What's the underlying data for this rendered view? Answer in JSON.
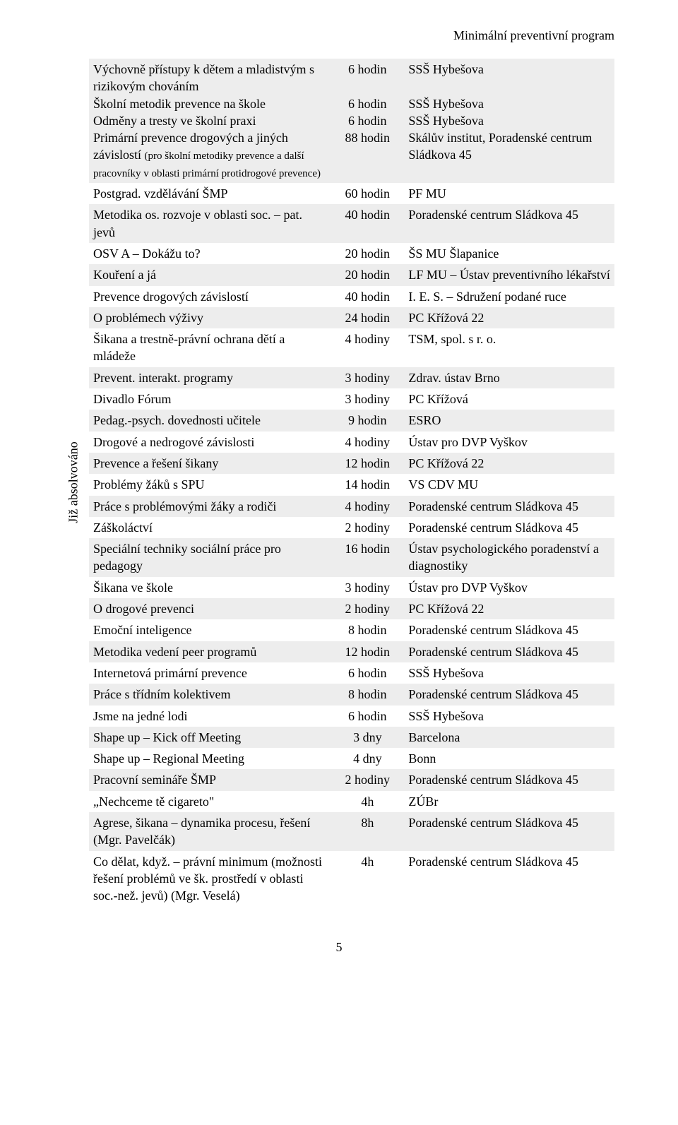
{
  "header": {
    "title": "Minimální preventivní program"
  },
  "sideLabel": "Již absolvováno",
  "pageNumber": "5",
  "columns": {
    "name_w": "46%",
    "hours_w": "14%",
    "org_w": "40%"
  },
  "rows": [
    {
      "name_html": "Výchovně přístupy k dětem a mladistvým s rizikovým chováním<br>Školní metodik prevence na škole<br>Odměny a tresty ve školní praxi<br>Primární prevence drogových a jiných závislostí <span class='small'>(pro školní metodiky prevence a další pracovníky v oblasti primární protidrogové prevence)</span>",
      "hours_html": "6 hodin<br>&nbsp;<br>6 hodin<br>6 hodin<br>88 hodin",
      "org_html": "SSŠ Hybešova<br>&nbsp;<br>SSŠ Hybešova<br>SSŠ Hybešova<br>Skálův institut, Poradenské centrum Sládkova 45"
    },
    {
      "name": "Postgrad. vzdělávání ŠMP",
      "hours": "60 hodin",
      "org": "PF MU"
    },
    {
      "name": "Metodika os. rozvoje v oblasti soc. – pat. jevů",
      "hours": "40 hodin",
      "org": "Poradenské centrum Sládkova 45"
    },
    {
      "name": "OSV A – Dokážu to?",
      "hours": "20 hodin",
      "org": "ŠS MU Šlapanice"
    },
    {
      "name": "Kouření a já",
      "hours": "20 hodin",
      "org": "LF MU – Ústav preventivního lékařství"
    },
    {
      "name": "Prevence drogových závislostí",
      "hours": "40 hodin",
      "org": "I. E. S. – Sdružení podané ruce"
    },
    {
      "name": "O problémech výživy",
      "hours": "24 hodin",
      "org": "PC Křížová 22"
    },
    {
      "name": "Šikana a trestně-právní ochrana dětí a mládeže",
      "hours": "4 hodiny",
      "org": "TSM, spol. s r. o."
    },
    {
      "name": "Prevent. interakt. programy",
      "hours": "3 hodiny",
      "org": "Zdrav. ústav Brno"
    },
    {
      "name": "Divadlo Fórum",
      "hours": "3 hodiny",
      "org": "PC Křížová"
    },
    {
      "name": "Pedag.-psych. dovednosti učitele",
      "hours": "9 hodin",
      "org": "ESRO"
    },
    {
      "name": "Drogové a nedrogové závislosti",
      "hours": "4 hodiny",
      "org": "Ústav pro DVP Vyškov"
    },
    {
      "name": "Prevence a řešení šikany",
      "hours": "12 hodin",
      "org": "PC Křížová 22"
    },
    {
      "name": "Problémy žáků s SPU",
      "hours": "14 hodin",
      "org": "VS CDV MU"
    },
    {
      "name": "Práce s problémovými žáky a rodiči",
      "hours": "4 hodiny",
      "org": "Poradenské centrum Sládkova 45"
    },
    {
      "name": "Záškoláctví",
      "hours": "2 hodiny",
      "org": "Poradenské centrum Sládkova 45"
    },
    {
      "name": "Speciální techniky sociální práce pro pedagogy",
      "hours": "16 hodin",
      "org": "Ústav psychologického poradenství a diagnostiky"
    },
    {
      "name": "Šikana ve škole",
      "hours": "3 hodiny",
      "org": "Ústav pro DVP Vyškov"
    },
    {
      "name": "O drogové prevenci",
      "hours": "2 hodiny",
      "org": "PC Křížová 22"
    },
    {
      "name": "Emoční inteligence",
      "hours": "8 hodin",
      "org": "Poradenské centrum Sládkova 45"
    },
    {
      "name": "Metodika vedení peer programů",
      "hours": "12 hodin",
      "org": "Poradenské centrum Sládkova 45"
    },
    {
      "name": "Internetová primární prevence",
      "hours": "6 hodin",
      "org": "SSŠ Hybešova"
    },
    {
      "name": "Práce s třídním kolektivem",
      "hours": "8 hodin",
      "org": "Poradenské centrum Sládkova 45"
    },
    {
      "name": "Jsme na jedné lodi",
      "hours": "6 hodin",
      "org": "SSŠ Hybešova"
    },
    {
      "name": "Shape up – Kick off Meeting",
      "hours": "3 dny",
      "org": "Barcelona"
    },
    {
      "name": "Shape up – Regional Meeting",
      "hours": "4 dny",
      "org": "Bonn"
    },
    {
      "name": "Pracovní semináře ŠMP",
      "hours": "2 hodiny",
      "org": "Poradenské centrum Sládkova 45"
    },
    {
      "name": "„Nechceme tě cigareto\"",
      "hours": "4h",
      "org": "ZÚBr"
    },
    {
      "name": "Agrese, šikana – dynamika procesu, řešení (Mgr. Pavelčák)",
      "hours": "8h",
      "org": "Poradenské centrum Sládkova 45"
    },
    {
      "name": "Co dělat, když. – právní minimum (možnosti řešení problémů ve šk. prostředí v oblasti soc.-než. jevů) (Mgr. Veselá)",
      "hours": "4h",
      "org": "Poradenské centrum Sládkova 45"
    }
  ]
}
